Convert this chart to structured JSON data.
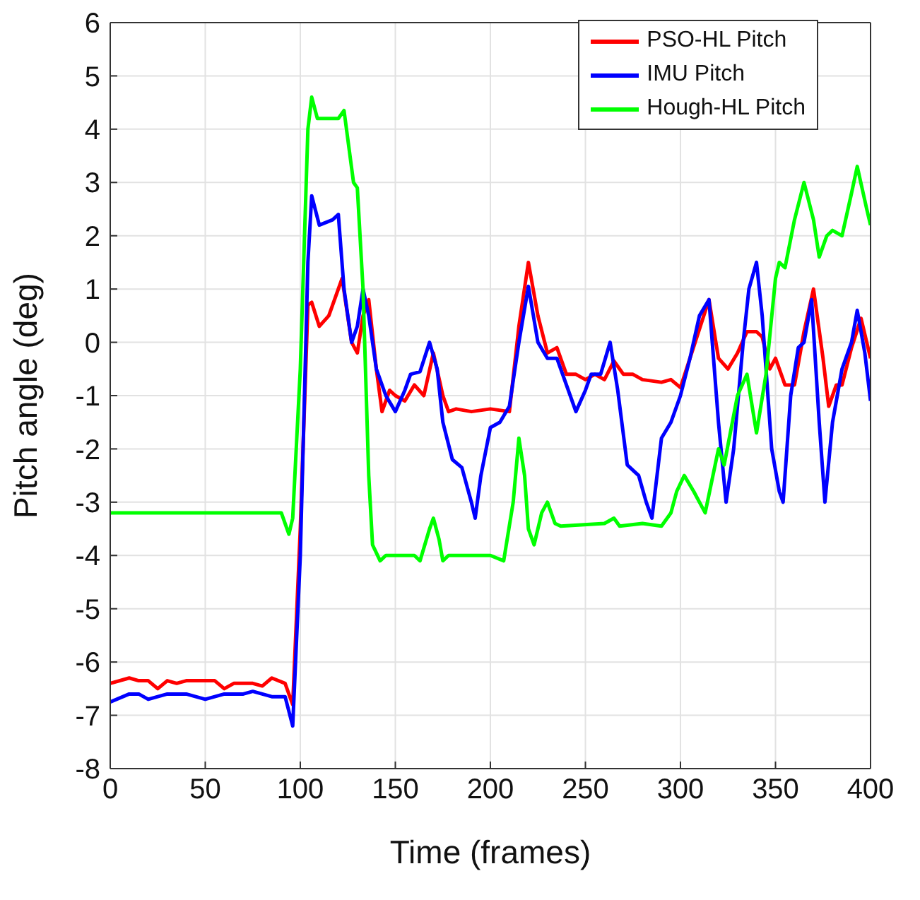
{
  "chart_data": {
    "type": "line",
    "xlabel": "Time (frames)",
    "ylabel": "Pitch angle (deg)",
    "xlim": [
      0,
      400
    ],
    "xticks": [
      0,
      50,
      100,
      150,
      200,
      250,
      300,
      350,
      400
    ],
    "ylim": [
      -8,
      6
    ],
    "yticks": [
      -8,
      -7,
      -6,
      -5,
      -4,
      -3,
      -2,
      -1,
      0,
      1,
      2,
      3,
      4,
      5,
      6
    ],
    "grid": true,
    "legend": "top right",
    "marker": "none",
    "line_style": "solid",
    "series": [
      {
        "name": "PSO-HL Pitch",
        "color": "#ff0000",
        "x": [
          0,
          10,
          15,
          20,
          25,
          30,
          35,
          40,
          50,
          55,
          60,
          65,
          75,
          80,
          85,
          92,
          96,
          100,
          104,
          106,
          110,
          115,
          120,
          122,
          127,
          130,
          133,
          136,
          140,
          143,
          147,
          150,
          155,
          160,
          165,
          170,
          175,
          178,
          182,
          190,
          200,
          210,
          215,
          220,
          225,
          230,
          235,
          240,
          245,
          250,
          255,
          260,
          265,
          270,
          275,
          280,
          290,
          295,
          300,
          305,
          315,
          320,
          325,
          330,
          335,
          340,
          343,
          347,
          350,
          355,
          360,
          365,
          370,
          375,
          378,
          382,
          385,
          390,
          395,
          400
        ],
        "values": [
          -6.4,
          -6.3,
          -6.35,
          -6.35,
          -6.5,
          -6.35,
          -6.4,
          -6.35,
          -6.35,
          -6.35,
          -6.5,
          -6.4,
          -6.4,
          -6.45,
          -6.3,
          -6.4,
          -6.8,
          -3.5,
          0.7,
          0.75,
          0.3,
          0.5,
          1.0,
          1.2,
          0.0,
          -0.2,
          0.5,
          0.8,
          -0.5,
          -1.3,
          -0.9,
          -1.0,
          -1.1,
          -0.8,
          -1.0,
          -0.2,
          -1.0,
          -1.3,
          -1.25,
          -1.3,
          -1.25,
          -1.3,
          0.3,
          1.5,
          0.5,
          -0.2,
          -0.1,
          -0.6,
          -0.6,
          -0.7,
          -0.6,
          -0.7,
          -0.35,
          -0.6,
          -0.6,
          -0.7,
          -0.75,
          -0.7,
          -0.85,
          -0.3,
          0.8,
          -0.3,
          -0.5,
          -0.2,
          0.2,
          0.2,
          0.1,
          -0.5,
          -0.3,
          -0.8,
          -0.8,
          0.2,
          1.0,
          -0.3,
          -1.2,
          -0.8,
          -0.8,
          -0.1,
          0.45,
          -0.3
        ]
      },
      {
        "name": "IMU Pitch",
        "color": "#0000ff",
        "x": [
          0,
          10,
          15,
          20,
          30,
          40,
          50,
          60,
          70,
          75,
          80,
          85,
          92,
          96,
          100,
          104,
          106,
          110,
          117,
          120,
          123,
          127,
          130,
          133,
          136,
          140,
          145,
          150,
          155,
          158,
          163,
          168,
          172,
          175,
          180,
          185,
          190,
          192,
          195,
          200,
          205,
          210,
          215,
          220,
          225,
          230,
          235,
          240,
          245,
          250,
          253,
          258,
          263,
          267,
          272,
          278,
          282,
          285,
          290,
          295,
          300,
          305,
          310,
          315,
          320,
          324,
          328,
          333,
          336,
          340,
          343,
          348,
          352,
          354,
          358,
          362,
          365,
          369,
          373,
          376,
          380,
          385,
          390,
          393,
          397,
          400
        ],
        "values": [
          -6.75,
          -6.6,
          -6.6,
          -6.7,
          -6.6,
          -6.6,
          -6.7,
          -6.6,
          -6.6,
          -6.55,
          -6.6,
          -6.65,
          -6.65,
          -7.2,
          -4,
          1.5,
          2.75,
          2.2,
          2.3,
          2.4,
          1.0,
          0.0,
          0.3,
          1.0,
          0.5,
          -0.5,
          -1.0,
          -1.3,
          -0.9,
          -0.6,
          -0.55,
          0.0,
          -0.5,
          -1.5,
          -2.2,
          -2.35,
          -3.0,
          -3.3,
          -2.5,
          -1.6,
          -1.5,
          -1.2,
          0.0,
          1.05,
          0.0,
          -0.3,
          -0.3,
          -0.8,
          -1.3,
          -0.9,
          -0.6,
          -0.6,
          0.0,
          -0.9,
          -2.3,
          -2.5,
          -3.0,
          -3.3,
          -1.8,
          -1.5,
          -1.0,
          -0.3,
          0.5,
          0.8,
          -1.5,
          -3.0,
          -2.0,
          0.0,
          1.0,
          1.5,
          0.5,
          -2.0,
          -2.8,
          -3.0,
          -1.0,
          -0.1,
          0.0,
          0.8,
          -1.5,
          -3.0,
          -1.5,
          -0.5,
          0.0,
          0.6,
          -0.2,
          -1.1
        ]
      },
      {
        "name": "Hough-HL Pitch",
        "color": "#00ff00",
        "x": [
          0,
          90,
          94,
          96,
          100,
          104,
          106,
          109,
          115,
          120,
          123,
          128,
          130,
          133,
          136,
          138,
          142,
          145,
          160,
          163,
          168,
          170,
          173,
          175,
          178,
          200,
          207,
          212,
          215,
          218,
          220,
          223,
          227,
          230,
          234,
          237,
          260,
          265,
          268,
          280,
          290,
          295,
          298,
          302,
          307,
          310,
          313,
          320,
          323,
          330,
          335,
          340,
          345,
          350,
          352,
          355,
          360,
          365,
          370,
          373,
          377,
          380,
          385,
          390,
          393,
          398,
          400
        ],
        "values": [
          -3.2,
          -3.2,
          -3.6,
          -3.3,
          -0.5,
          4.0,
          4.6,
          4.2,
          4.2,
          4.2,
          4.35,
          3.0,
          2.9,
          1.0,
          -2.5,
          -3.8,
          -4.1,
          -4.0,
          -4.0,
          -4.1,
          -3.5,
          -3.3,
          -3.7,
          -4.1,
          -4.0,
          -4.0,
          -4.1,
          -3.0,
          -1.8,
          -2.5,
          -3.5,
          -3.8,
          -3.2,
          -3.0,
          -3.4,
          -3.45,
          -3.4,
          -3.3,
          -3.45,
          -3.4,
          -3.45,
          -3.2,
          -2.8,
          -2.5,
          -2.8,
          -3.0,
          -3.2,
          -2.0,
          -2.3,
          -1.0,
          -0.6,
          -1.7,
          -0.6,
          1.2,
          1.5,
          1.4,
          2.3,
          3.0,
          2.3,
          1.6,
          2.0,
          2.1,
          2.0,
          2.8,
          3.3,
          2.5,
          2.2
        ]
      }
    ]
  }
}
